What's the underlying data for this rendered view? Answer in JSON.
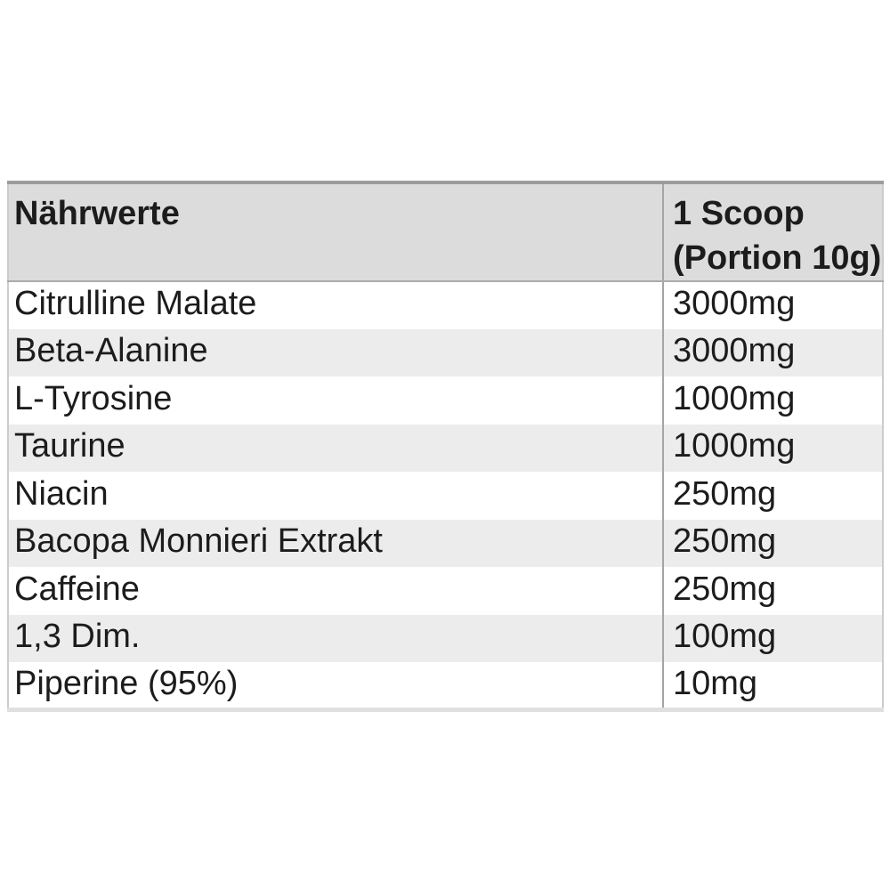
{
  "table": {
    "header": {
      "col1": "Nährwerte",
      "col2_line1": "1 Scoop",
      "col2_line2": "(Portion 10g)"
    },
    "rows": [
      {
        "name": "Citrulline Malate",
        "amount": "3000mg"
      },
      {
        "name": "Beta-Alanine",
        "amount": "3000mg"
      },
      {
        "name": "L-Tyrosine",
        "amount": "1000mg"
      },
      {
        "name": "Taurine",
        "amount": "1000mg"
      },
      {
        "name": "Niacin",
        "amount": "250mg"
      },
      {
        "name": "Bacopa Monnieri Extrakt",
        "amount": "250mg"
      },
      {
        "name": "Caffeine",
        "amount": "250mg"
      },
      {
        "name": "1,3 Dim.",
        "amount": "100mg"
      },
      {
        "name": "Piperine (95%)",
        "amount": "10mg"
      }
    ],
    "colors": {
      "header_bg": "#dcdcdc",
      "stripe_bg": "#ececec",
      "top_border": "#9c9c9c",
      "bottom_border": "#e0e0e0",
      "side_border": "#cccccc",
      "column_divider": "#a5a5a5",
      "header_separator": "#aaaaaa",
      "text": "#1c1c1c"
    }
  }
}
